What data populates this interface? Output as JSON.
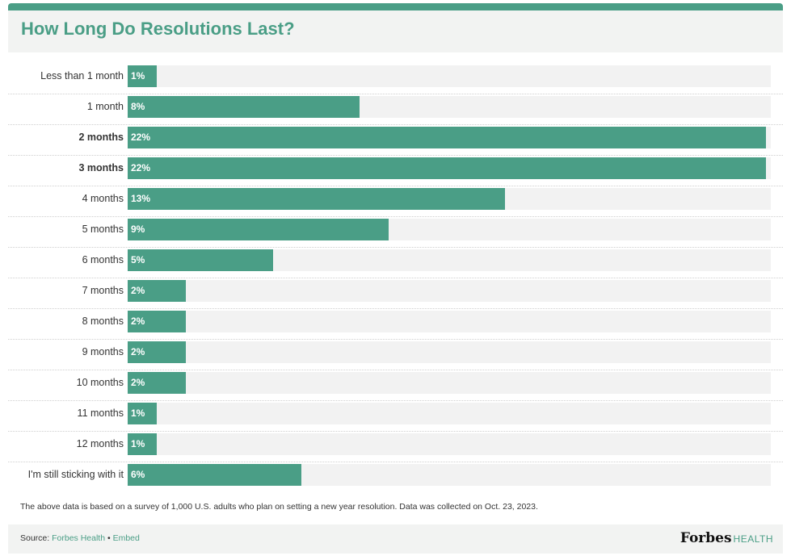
{
  "title": "How Long Do Resolutions Last?",
  "chart_data": {
    "type": "bar",
    "orientation": "horizontal",
    "title": "How Long Do Resolutions Last?",
    "categories": [
      "Less than 1 month",
      "1 month",
      "2 months",
      "3 months",
      "4 months",
      "5 months",
      "6 months",
      "7 months",
      "8 months",
      "9 months",
      "10 months",
      "11 months",
      "12 months",
      "I'm still sticking with it"
    ],
    "values": [
      1,
      8,
      22,
      22,
      13,
      9,
      5,
      2,
      2,
      2,
      2,
      1,
      1,
      6
    ],
    "value_labels": [
      "1%",
      "8%",
      "22%",
      "22%",
      "13%",
      "9%",
      "5%",
      "2%",
      "2%",
      "2%",
      "2%",
      "1%",
      "1%",
      "6%"
    ],
    "emphasized": [
      "2 months",
      "3 months"
    ],
    "xlim": [
      0,
      22
    ],
    "grid": false,
    "bar_color": "#4a9e86",
    "track_color": "#f2f2f2"
  },
  "note": "The above data is based on a survey of 1,000 U.S. adults who plan on setting a new year resolution. Data was collected on Oct. 23, 2023.",
  "footer": {
    "source_label": "Source:",
    "source_link": "Forbes Health",
    "separator": "•",
    "embed_link": "Embed",
    "logo_main": "Forbes",
    "logo_sub": "HEALTH"
  },
  "colors": {
    "accent": "#4a9e86",
    "panel": "#f2f3f2"
  }
}
